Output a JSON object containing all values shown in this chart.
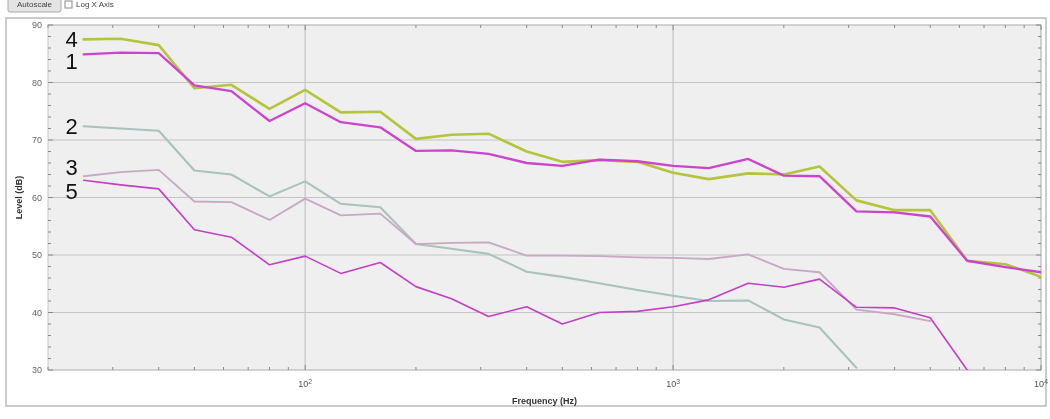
{
  "chart_data": {
    "type": "line",
    "xlabel": "Frequency (Hz)",
    "ylabel": "Level (dB)",
    "annotations": [
      "Autoscale",
      "Log X Axis"
    ],
    "x": [
      25,
      31.5,
      40,
      50,
      63,
      80,
      100,
      125,
      160,
      200,
      250,
      315,
      400,
      500,
      630,
      800,
      1000,
      1250,
      1600,
      2000,
      2500,
      3150,
      4000,
      5000,
      6300,
      8000,
      10000
    ],
    "series": [
      {
        "name": "4",
        "color": "#b5c43c",
        "values": [
          87.5,
          87.6,
          86.5,
          79.0,
          79.6,
          75.4,
          78.7,
          74.8,
          74.9,
          70.2,
          70.9,
          71.1,
          68.0,
          66.2,
          66.5,
          66.2,
          64.3,
          63.2,
          64.2,
          64.0,
          65.4,
          59.5,
          57.8,
          57.8,
          49.0,
          48.4,
          46.2
        ]
      },
      {
        "name": "1",
        "color": "#cc44cc",
        "values": [
          84.9,
          85.2,
          85.1,
          79.5,
          78.5,
          73.3,
          76.4,
          73.1,
          72.2,
          68.1,
          68.2,
          67.6,
          66.0,
          65.5,
          66.6,
          66.3,
          65.5,
          65.1,
          66.7,
          63.8,
          63.7,
          57.6,
          57.4,
          56.7,
          49.0,
          47.9,
          47.0
        ]
      },
      {
        "name": "2",
        "color": "#a8c2bd",
        "values": [
          72.4,
          72.0,
          71.6,
          64.7,
          64.0,
          60.2,
          62.8,
          58.9,
          58.3,
          51.9,
          51.1,
          50.2,
          47.1,
          46.2,
          45.1,
          43.9,
          42.9,
          42.0,
          42.1,
          38.8,
          37.4,
          30.4,
          null,
          null,
          null,
          null,
          null
        ]
      },
      {
        "name": "3",
        "color": "#c8a8c4",
        "values": [
          63.7,
          64.4,
          64.8,
          59.3,
          59.2,
          56.1,
          59.8,
          56.9,
          57.2,
          51.9,
          52.1,
          52.2,
          49.9,
          49.9,
          49.8,
          49.6,
          49.5,
          49.3,
          50.1,
          47.6,
          47.0,
          40.5,
          39.7,
          38.5,
          null,
          null,
          null
        ]
      },
      {
        "name": "5",
        "color": "#c23fc6",
        "values": [
          63.0,
          62.2,
          61.5,
          54.4,
          53.1,
          48.3,
          49.8,
          46.8,
          48.7,
          44.5,
          42.4,
          39.3,
          41.0,
          38.0,
          40.0,
          40.2,
          41.0,
          42.2,
          45.1,
          44.4,
          45.8,
          40.9,
          40.8,
          39.1,
          30,
          null,
          null
        ]
      }
    ],
    "log": "x",
    "xlim": [
      20,
      10000
    ],
    "xticks": [
      {
        "value": 20,
        "label": null
      },
      {
        "value": 30,
        "label": null
      },
      {
        "value": 40,
        "label": null
      },
      {
        "value": 50,
        "label": null
      },
      {
        "value": 60,
        "label": null
      },
      {
        "value": 70,
        "label": null
      },
      {
        "value": 80,
        "label": null
      },
      {
        "value": 90,
        "label": null
      },
      {
        "value": 100,
        "label": "10$^{2}$"
      },
      {
        "value": 200,
        "label": null
      },
      {
        "value": 300,
        "label": null
      },
      {
        "value": 400,
        "label": null
      },
      {
        "value": 500,
        "label": null
      },
      {
        "value": 600,
        "label": null
      },
      {
        "value": 700,
        "label": null
      },
      {
        "value": 800,
        "label": null
      },
      {
        "value": 900,
        "label": null
      },
      {
        "value": 1000,
        "label": "10$^{3}$"
      },
      {
        "value": 2000,
        "label": null
      },
      {
        "value": 3000,
        "label": null
      },
      {
        "value": 4000,
        "label": null
      },
      {
        "value": 5000,
        "label": null
      },
      {
        "value": 6000,
        "label": null
      },
      {
        "value": 7000,
        "label": null
      },
      {
        "value": 8000,
        "label": null
      },
      {
        "value": 9000,
        "label": null
      },
      {
        "value": 10000,
        "label": "10$^{4}$"
      }
    ],
    "ylim": [
      30,
      90
    ],
    "yticks": [
      30,
      {
        "value": 32,
        "label": null
      },
      {
        "value": 34,
        "label": null
      },
      {
        "value": 36,
        "label": null
      },
      {
        "value": 38,
        "label": null
      },
      40,
      {
        "value": 42,
        "label": null
      },
      {
        "value": 44,
        "label": null
      },
      {
        "value": 46,
        "label": null
      },
      {
        "value": 48,
        "label": null
      },
      50,
      {
        "value": 52,
        "label": null
      },
      {
        "value": 54,
        "label": null
      },
      {
        "value": 56,
        "label": null
      },
      {
        "value": 58,
        "label": null
      },
      60,
      {
        "value": 62,
        "label": null
      },
      {
        "value": 64,
        "label": null
      },
      {
        "value": 66,
        "label": null
      },
      {
        "value": 68,
        "label": null
      },
      70,
      {
        "value": 72,
        "label": null
      },
      {
        "value": 74,
        "label": null
      },
      {
        "value": 76,
        "label": null
      },
      {
        "value": 78,
        "label": null
      },
      80,
      {
        "value": 82,
        "label": null
      },
      {
        "value": 84,
        "label": null
      },
      {
        "value": 86,
        "label": null
      },
      {
        "value": 88,
        "label": null
      },
      90
    ],
    "grid": true,
    "legend": false,
    "line_style": "solid",
    "marker": "none"
  }
}
